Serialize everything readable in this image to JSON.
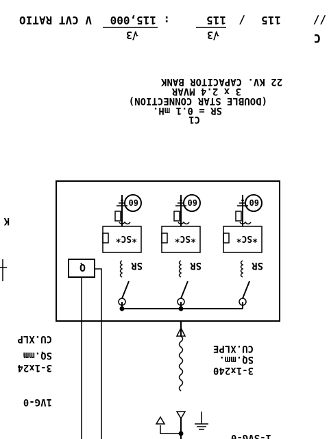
{
  "header": {
    "ratio_label": "V CVT RATIO",
    "primary_value": "115,000",
    "primary_divisor": "√3",
    "separator": ":",
    "secondary_value": "115",
    "secondary_divisor": "√3",
    "slash": "/",
    "tertiary_value": "115",
    "leading_fragment": "//",
    "right_fragment": "C"
  },
  "capacitor_bank": {
    "line1": "22 KV. CAPACITOR BANK",
    "line2": "3 x 2.4 MVAR",
    "line3": "(DOUBLE STAR CONNECTION)",
    "line4": "SR = 0.1 mH.",
    "line5": "C1"
  },
  "phases": [
    {
      "relay_label": "60",
      "sc_label": "*SC*",
      "sr_label": "SR"
    },
    {
      "relay_label": "60",
      "sc_label": "*SC*",
      "sr_label": "SR"
    },
    {
      "relay_label": "60",
      "sc_label": "*SC*",
      "sr_label": "SR"
    }
  ],
  "q_box_label": "Q",
  "cable_main": {
    "line1": "CU.XLPE",
    "line2": "SQ.mm.",
    "line3": "3-1x240"
  },
  "cable_left": {
    "line1": "CU.XLP",
    "line2": "SQ.mm",
    "line3": "3-1x24",
    "line4": "1VG-0"
  },
  "edge_fragments": {
    "left_k": "K",
    "bottom_right": "1-SVG-0"
  }
}
